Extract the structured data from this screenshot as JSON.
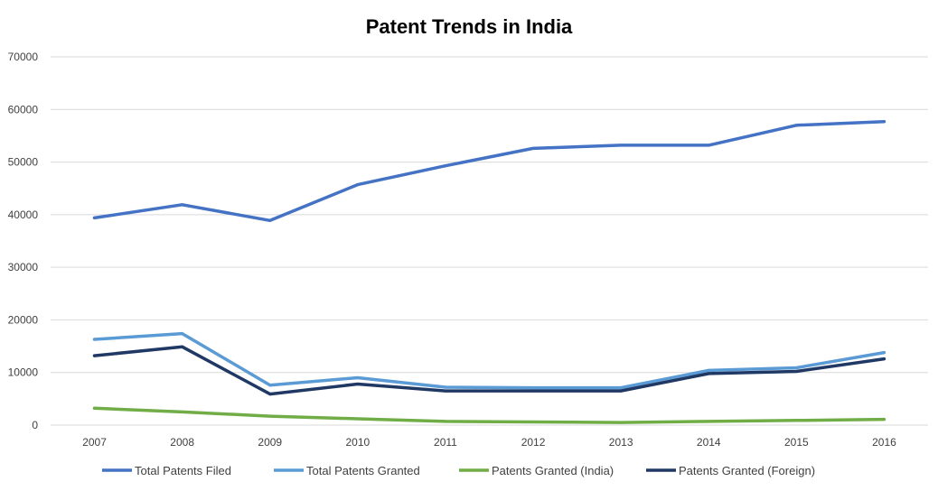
{
  "chart_data": {
    "type": "line",
    "title": "Patent Trends in India",
    "xlabel": "",
    "ylabel": "",
    "categories": [
      "2007",
      "2008",
      "2009",
      "2010",
      "2011",
      "2012",
      "2013",
      "2014",
      "2015",
      "2016"
    ],
    "ylim": [
      0,
      70000
    ],
    "yticks": [
      0,
      10000,
      20000,
      30000,
      40000,
      50000,
      60000,
      70000
    ],
    "grid": true,
    "legend_position": "bottom",
    "series": [
      {
        "name": "Total Patents Filed",
        "color": "#4472c4",
        "values": [
          39400,
          41900,
          38900,
          45700,
          49300,
          52600,
          53200,
          53200,
          57000,
          57700
        ]
      },
      {
        "name": "Total Patents Granted",
        "color": "#5b9bd5",
        "values": [
          16300,
          17400,
          7600,
          9000,
          7200,
          7100,
          7100,
          10400,
          10900,
          13800
        ]
      },
      {
        "name": "Patents Granted (India)",
        "color": "#70ad47",
        "values": [
          3200,
          2500,
          1700,
          1200,
          700,
          600,
          500,
          700,
          900,
          1100
        ]
      },
      {
        "name": "Patents Granted (Foreign)",
        "color": "#203864",
        "values": [
          13200,
          14900,
          5900,
          7800,
          6500,
          6500,
          6500,
          9800,
          10200,
          12600
        ]
      }
    ]
  }
}
